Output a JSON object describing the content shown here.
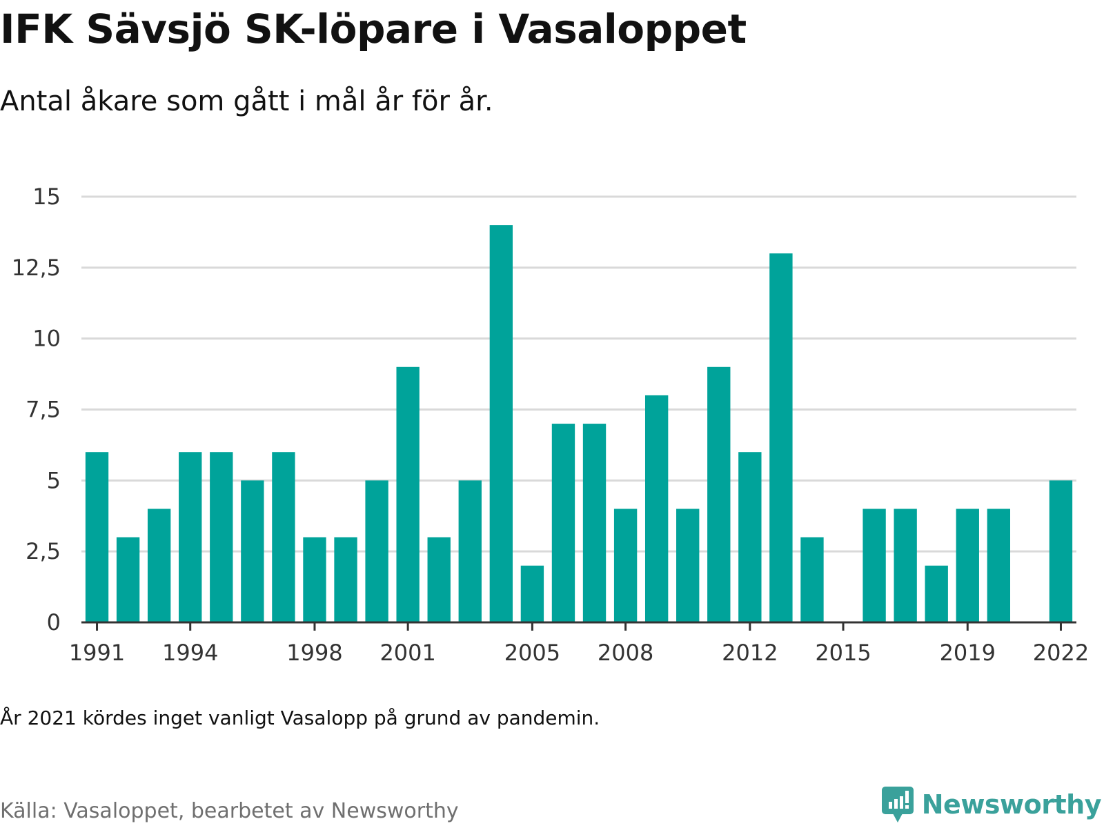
{
  "header": {
    "title": "IFK Sävsjö SK-löpare i Vasaloppet",
    "subtitle": "Antal åkare som gått i mål år för år."
  },
  "footer": {
    "note": "År 2021 kördes inget vanligt Vasalopp på grund av pandemin.",
    "source": "Källa: Vasaloppet, bearbetet av Newsworthy",
    "brand": "Newsworthy",
    "brand_icon": "newsworthy-logo-icon"
  },
  "colors": {
    "bar": "#00a39a",
    "grid": "#d9d9d9",
    "axis": "#333333",
    "brand": "#3aa19b"
  },
  "chart_data": {
    "type": "bar",
    "title": "IFK Sävsjö SK-löpare i Vasaloppet",
    "subtitle": "Antal åkare som gått i mål år för år.",
    "xlabel": "",
    "ylabel": "",
    "grid": true,
    "ylim": [
      0,
      15
    ],
    "yticks": [
      0,
      2.5,
      5,
      7.5,
      10,
      12.5,
      15
    ],
    "ytick_labels": [
      "0",
      "2,5",
      "5",
      "7,5",
      "10",
      "12,5",
      "15"
    ],
    "xtick_labels": [
      "1991",
      "1994",
      "1998",
      "2001",
      "2005",
      "2008",
      "2012",
      "2015",
      "2019",
      "2022"
    ],
    "categories": [
      1991,
      1992,
      1993,
      1994,
      1995,
      1996,
      1997,
      1998,
      1999,
      2000,
      2001,
      2002,
      2003,
      2004,
      2005,
      2006,
      2007,
      2008,
      2009,
      2010,
      2011,
      2012,
      2013,
      2014,
      2015,
      2016,
      2017,
      2018,
      2019,
      2020,
      2021,
      2022
    ],
    "values": [
      6,
      3,
      4,
      6,
      6,
      5,
      6,
      3,
      3,
      5,
      9,
      3,
      5,
      14,
      2,
      7,
      7,
      4,
      8,
      4,
      9,
      6,
      13,
      3,
      0,
      4,
      4,
      2,
      4,
      4,
      0,
      5
    ]
  }
}
